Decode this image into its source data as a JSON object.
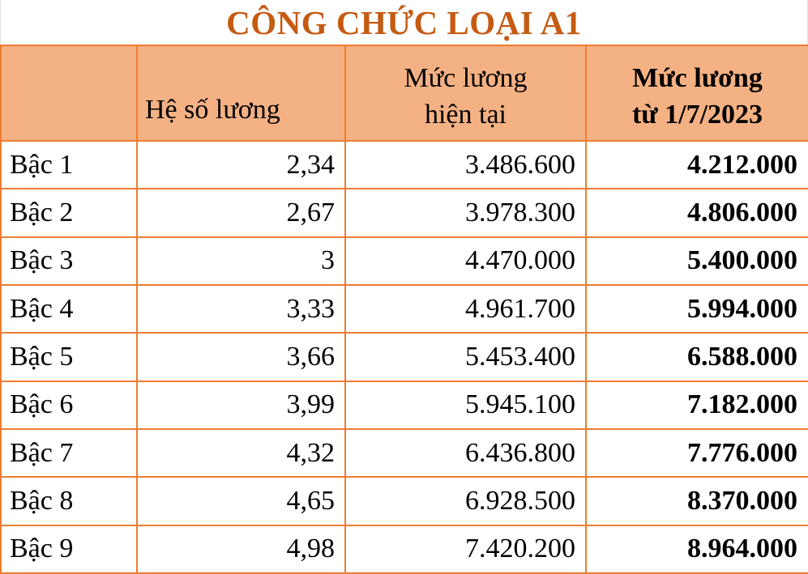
{
  "title": "CÔNG CHỨC LOẠI A1",
  "colors": {
    "title_text": "#c55a11",
    "header_fill": "#f4b183",
    "table_border": "#ed7d31",
    "body_text": "#000000",
    "background": "#ffffff"
  },
  "table": {
    "headers": {
      "level": "",
      "coefficient": "Hệ số lương",
      "current_line1": "Mức lương",
      "current_line2": "hiện tại",
      "new_line1": "Mức lương",
      "new_line2": "từ 1/7/2023"
    },
    "rows": [
      {
        "level": "Bậc 1",
        "coefficient": "2,34",
        "current": "3.486.600",
        "new": "4.212.000"
      },
      {
        "level": "Bậc 2",
        "coefficient": "2,67",
        "current": "3.978.300",
        "new": "4.806.000"
      },
      {
        "level": "Bậc 3",
        "coefficient": "3",
        "current": "4.470.000",
        "new": "5.400.000"
      },
      {
        "level": "Bậc 4",
        "coefficient": "3,33",
        "current": "4.961.700",
        "new": "5.994.000"
      },
      {
        "level": "Bậc 5",
        "coefficient": "3,66",
        "current": "5.453.400",
        "new": "6.588.000"
      },
      {
        "level": "Bậc 6",
        "coefficient": "3,99",
        "current": "5.945.100",
        "new": "7.182.000"
      },
      {
        "level": "Bậc 7",
        "coefficient": "4,32",
        "current": "6.436.800",
        "new": "7.776.000"
      },
      {
        "level": "Bậc 8",
        "coefficient": "4,65",
        "current": "6.928.500",
        "new": "8.370.000"
      },
      {
        "level": "Bậc 9",
        "coefficient": "4,98",
        "current": "7.420.200",
        "new": "8.964.000"
      }
    ]
  }
}
